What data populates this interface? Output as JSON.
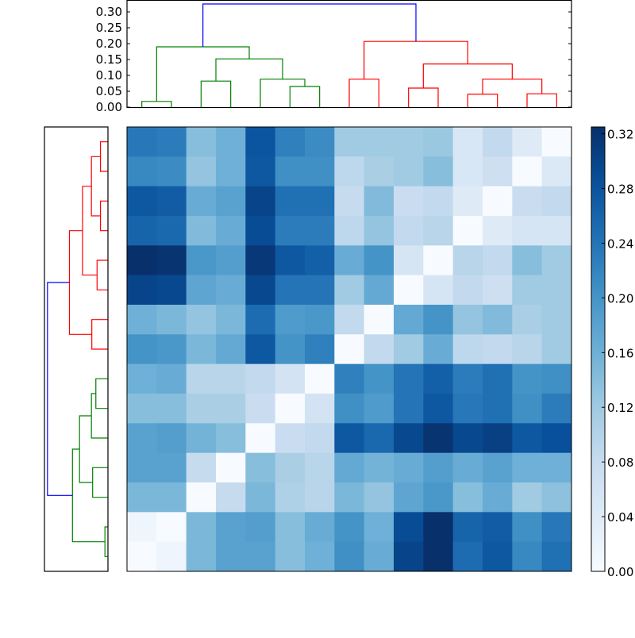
{
  "chart_data": [
    {
      "type": "dendrogram",
      "position": "top",
      "leaf_count": 15,
      "y_ticks": [
        "0.00",
        "0.05",
        "0.10",
        "0.15",
        "0.20",
        "0.25",
        "0.30"
      ],
      "y_tick_values": [
        0,
        0.05,
        0.1,
        0.15,
        0.2,
        0.25,
        0.3
      ],
      "merges": [
        {
          "a": 0,
          "b": 1,
          "height": 0.018,
          "color": "#008000"
        },
        {
          "a": 2,
          "b": 3,
          "height": 0.082,
          "color": "#008000"
        },
        {
          "a": 5,
          "b": 6,
          "height": 0.065,
          "color": "#008000"
        },
        {
          "a": 4,
          "b": 17,
          "height": 0.088,
          "color": "#008000"
        },
        {
          "a": 16,
          "b": 18,
          "height": 0.152,
          "color": "#008000"
        },
        {
          "a": 15,
          "b": 19,
          "height": 0.19,
          "color": "#008000"
        },
        {
          "a": 7,
          "b": 8,
          "height": 0.088,
          "color": "#ff0000"
        },
        {
          "a": 9,
          "b": 10,
          "height": 0.06,
          "color": "#ff0000"
        },
        {
          "a": 11,
          "b": 12,
          "height": 0.041,
          "color": "#ff0000"
        },
        {
          "a": 13,
          "b": 14,
          "height": 0.042,
          "color": "#ff0000"
        },
        {
          "a": 23,
          "b": 24,
          "height": 0.088,
          "color": "#ff0000"
        },
        {
          "a": 22,
          "b": 25,
          "height": 0.136,
          "color": "#ff0000"
        },
        {
          "a": 21,
          "b": 26,
          "height": 0.207,
          "color": "#ff0000"
        },
        {
          "a": 20,
          "b": 27,
          "height": 0.325,
          "color": "#0000ff"
        }
      ]
    },
    {
      "type": "dendrogram",
      "position": "left",
      "leaf_count": 15,
      "merges": [
        {
          "a": 0,
          "b": 1,
          "height": 0.037,
          "color": "#ff0000"
        },
        {
          "a": 2,
          "b": 3,
          "height": 0.037,
          "color": "#ff0000"
        },
        {
          "a": 15,
          "b": 16,
          "height": 0.082,
          "color": "#ff0000"
        },
        {
          "a": 4,
          "b": 5,
          "height": 0.054,
          "color": "#ff0000"
        },
        {
          "a": 17,
          "b": 18,
          "height": 0.126,
          "color": "#ff0000"
        },
        {
          "a": 6,
          "b": 7,
          "height": 0.08,
          "color": "#ff0000"
        },
        {
          "a": 19,
          "b": 20,
          "height": 0.191,
          "color": "#ff0000"
        },
        {
          "a": 8,
          "b": 9,
          "height": 0.06,
          "color": "#008000"
        },
        {
          "a": 22,
          "b": 10,
          "height": 0.082,
          "color": "#008000"
        },
        {
          "a": 11,
          "b": 12,
          "height": 0.076,
          "color": "#008000"
        },
        {
          "a": 23,
          "b": 24,
          "height": 0.141,
          "color": "#008000"
        },
        {
          "a": 13,
          "b": 14,
          "height": 0.015,
          "color": "#008000"
        },
        {
          "a": 25,
          "b": 26,
          "height": 0.176,
          "color": "#008000"
        },
        {
          "a": 21,
          "b": 27,
          "height": 0.3,
          "color": "#0000ff"
        }
      ]
    },
    {
      "type": "heatmap",
      "colormap": "Blues",
      "vmin": 0,
      "vmax": 0.325,
      "values": [
        [
          0.235,
          0.23,
          0.14,
          0.16,
          0.28,
          0.225,
          0.21,
          0.12,
          0.12,
          0.12,
          0.125,
          0.05,
          0.085,
          0.04,
          0
        ],
        [
          0.215,
          0.21,
          0.13,
          0.16,
          0.275,
          0.205,
          0.205,
          0.09,
          0.11,
          0.12,
          0.14,
          0.05,
          0.07,
          0,
          0.045
        ],
        [
          0.275,
          0.27,
          0.165,
          0.18,
          0.3,
          0.245,
          0.245,
          0.08,
          0.145,
          0.075,
          0.085,
          0.04,
          0,
          0.075,
          0.085
        ],
        [
          0.26,
          0.255,
          0.145,
          0.165,
          0.29,
          0.23,
          0.23,
          0.09,
          0.13,
          0.085,
          0.095,
          0,
          0.04,
          0.055,
          0.055
        ],
        [
          0.325,
          0.32,
          0.195,
          0.185,
          0.315,
          0.275,
          0.265,
          0.165,
          0.2,
          0.055,
          0,
          0.095,
          0.085,
          0.14,
          0.12
        ],
        [
          0.3,
          0.295,
          0.175,
          0.165,
          0.295,
          0.24,
          0.24,
          0.12,
          0.17,
          0,
          0.055,
          0.085,
          0.07,
          0.12,
          0.12
        ],
        [
          0.16,
          0.15,
          0.13,
          0.15,
          0.25,
          0.19,
          0.195,
          0.085,
          0,
          0.17,
          0.2,
          0.13,
          0.145,
          0.11,
          0.12
        ],
        [
          0.2,
          0.195,
          0.15,
          0.17,
          0.275,
          0.2,
          0.225,
          0,
          0.085,
          0.12,
          0.165,
          0.09,
          0.085,
          0.095,
          0.12
        ],
        [
          0.16,
          0.165,
          0.095,
          0.095,
          0.085,
          0.06,
          0,
          0.225,
          0.2,
          0.24,
          0.265,
          0.23,
          0.245,
          0.2,
          0.205
        ],
        [
          0.14,
          0.14,
          0.11,
          0.11,
          0.075,
          0,
          0.06,
          0.205,
          0.19,
          0.24,
          0.275,
          0.235,
          0.245,
          0.205,
          0.23
        ],
        [
          0.18,
          0.185,
          0.155,
          0.14,
          0,
          0.075,
          0.085,
          0.275,
          0.255,
          0.295,
          0.32,
          0.295,
          0.305,
          0.275,
          0.285
        ],
        [
          0.18,
          0.18,
          0.08,
          0,
          0.14,
          0.11,
          0.095,
          0.17,
          0.155,
          0.165,
          0.185,
          0.165,
          0.18,
          0.16,
          0.16
        ],
        [
          0.15,
          0.15,
          0,
          0.08,
          0.15,
          0.105,
          0.095,
          0.15,
          0.13,
          0.175,
          0.195,
          0.14,
          0.165,
          0.12,
          0.135
        ],
        [
          0.015,
          0,
          0.15,
          0.18,
          0.185,
          0.14,
          0.165,
          0.2,
          0.16,
          0.29,
          0.325,
          0.26,
          0.27,
          0.205,
          0.235
        ],
        [
          0,
          0.015,
          0.15,
          0.18,
          0.18,
          0.14,
          0.16,
          0.205,
          0.165,
          0.3,
          0.325,
          0.25,
          0.275,
          0.215,
          0.245
        ]
      ]
    },
    {
      "type": "colorbar",
      "colormap": "Blues",
      "range": [
        0,
        0.325
      ],
      "ticks": [
        "0.00",
        "0.04",
        "0.08",
        "0.12",
        "0.16",
        "0.20",
        "0.24",
        "0.28",
        "0.32"
      ],
      "tick_values": [
        0,
        0.04,
        0.08,
        0.12,
        0.16,
        0.2,
        0.24,
        0.28,
        0.32
      ]
    }
  ]
}
